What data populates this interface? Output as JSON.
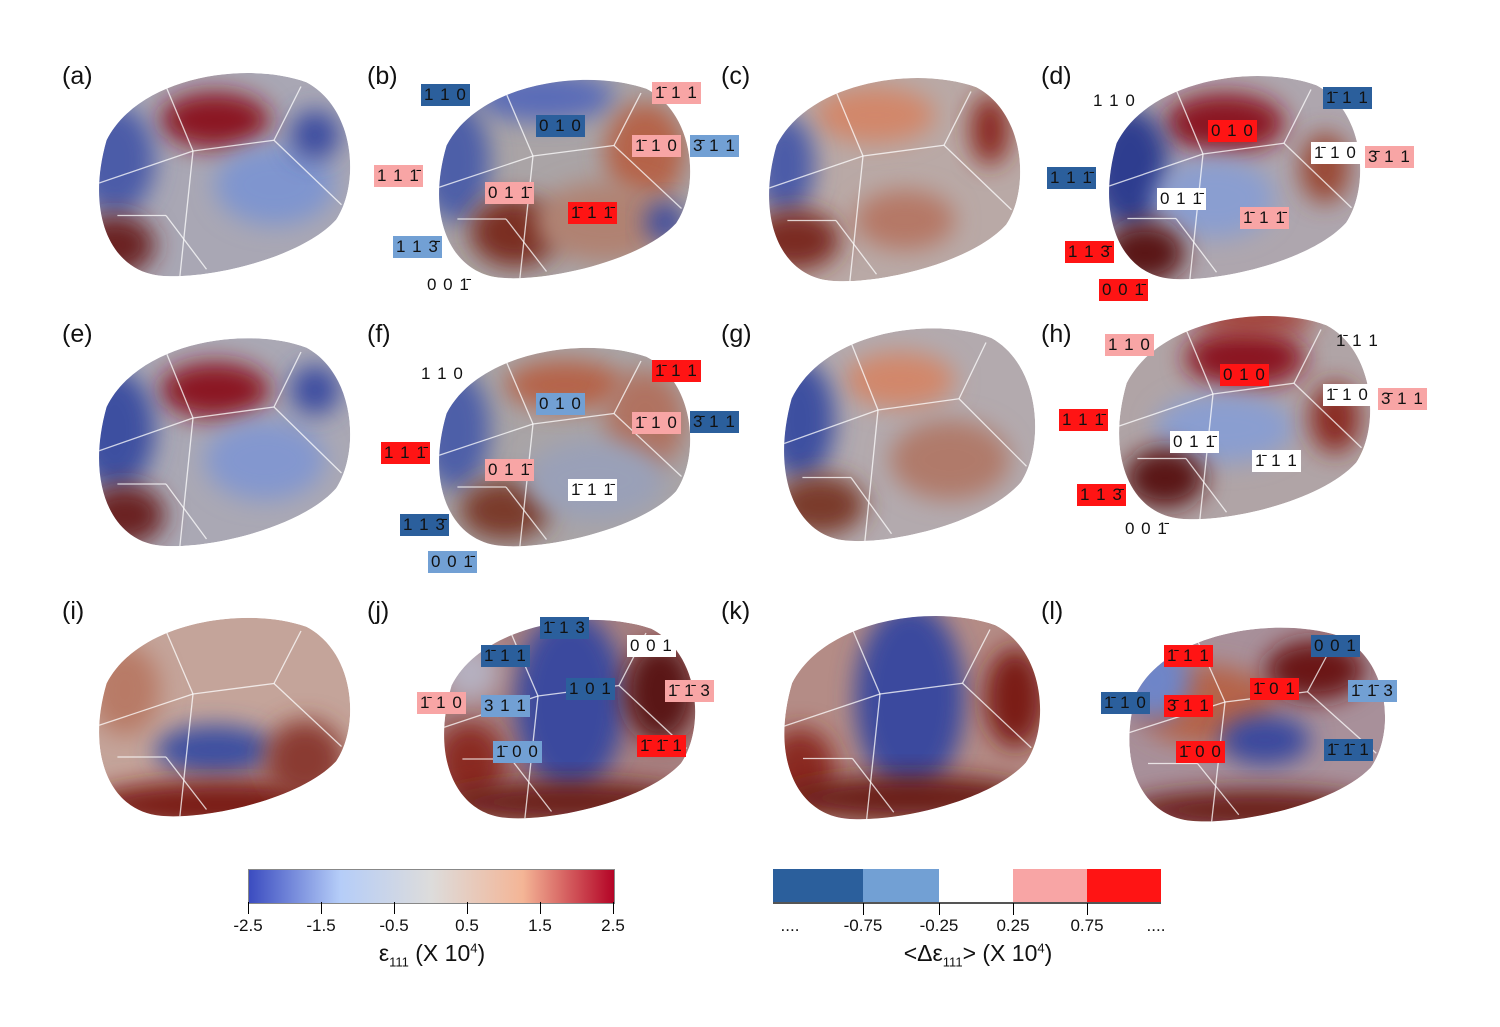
{
  "panels": {
    "a": {
      "label": "(a)"
    },
    "b": {
      "label": "(b)",
      "labels": [
        {
          "text": "1 1 0",
          "level": "strong-neg"
        },
        {
          "text": "0 1 0",
          "level": "strong-neg"
        },
        {
          "text": "1̄ 1 1",
          "level": "pos"
        },
        {
          "text": "1̄ 1 0",
          "level": "pos"
        },
        {
          "text": "3̄ 1 1",
          "level": "neg"
        },
        {
          "text": "1 1 1̄",
          "level": "pos"
        },
        {
          "text": "0 1 1̄",
          "level": "pos"
        },
        {
          "text": "1̄ 1 1̄",
          "level": "strong-pos"
        },
        {
          "text": "1 1 3̄",
          "level": "neg"
        },
        {
          "text": "0 0 1̄",
          "level": "none"
        }
      ]
    },
    "c": {
      "label": "(c)"
    },
    "d": {
      "label": "(d)",
      "labels": [
        {
          "text": "1 1 0",
          "level": "none"
        },
        {
          "text": "0 1 0",
          "level": "strong-pos"
        },
        {
          "text": "1̄ 1 1",
          "level": "strong-neg"
        },
        {
          "text": "1̄ 1 0",
          "level": "neutral"
        },
        {
          "text": "3̄ 1 1",
          "level": "pos"
        },
        {
          "text": "1 1 1̄",
          "level": "strong-neg"
        },
        {
          "text": "0 1 1̄",
          "level": "neutral"
        },
        {
          "text": "1̄ 1 1̄",
          "level": "pos"
        },
        {
          "text": "1 1 3̄",
          "level": "strong-pos"
        },
        {
          "text": "0 0 1̄",
          "level": "strong-pos"
        }
      ]
    },
    "e": {
      "label": "(e)"
    },
    "f": {
      "label": "(f)",
      "labels": [
        {
          "text": "1 1 0",
          "level": "none"
        },
        {
          "text": "0 1 0",
          "level": "neg"
        },
        {
          "text": "1̄ 1 1",
          "level": "strong-pos"
        },
        {
          "text": "1̄ 1 0",
          "level": "pos"
        },
        {
          "text": "3̄ 1 1",
          "level": "strong-neg"
        },
        {
          "text": "1 1 1̄",
          "level": "strong-pos"
        },
        {
          "text": "0 1 1̄",
          "level": "pos"
        },
        {
          "text": "1̄ 1 1̄",
          "level": "neutral"
        },
        {
          "text": "1 1 3̄",
          "level": "strong-neg"
        },
        {
          "text": "0 0 1̄",
          "level": "neg"
        }
      ]
    },
    "g": {
      "label": "(g)"
    },
    "h": {
      "label": "(h)",
      "labels": [
        {
          "text": "1 1 0",
          "level": "pos"
        },
        {
          "text": "1̄ 1 1",
          "level": "none"
        },
        {
          "text": "0 1 0",
          "level": "strong-pos"
        },
        {
          "text": "1̄ 1 0",
          "level": "neutral"
        },
        {
          "text": "3̄ 1 1",
          "level": "pos"
        },
        {
          "text": "1 1 1̄",
          "level": "strong-pos"
        },
        {
          "text": "0 1 1̄",
          "level": "neutral"
        },
        {
          "text": "1̄ 1 1",
          "level": "neutral"
        },
        {
          "text": "1 1 3̄",
          "level": "strong-pos"
        },
        {
          "text": "0 0 1̄",
          "level": "none"
        }
      ]
    },
    "i": {
      "label": "(i)"
    },
    "j": {
      "label": "(j)",
      "labels": [
        {
          "text": "1̄ 1 3",
          "level": "strong-neg"
        },
        {
          "text": "0 0 1",
          "level": "neutral"
        },
        {
          "text": "1̄ 1 1",
          "level": "strong-neg"
        },
        {
          "text": "1 0 1",
          "level": "strong-neg"
        },
        {
          "text": "1̄ 1̄ 3",
          "level": "pos"
        },
        {
          "text": "1̄ 1 0",
          "level": "pos"
        },
        {
          "text": "3 1 1",
          "level": "neg"
        },
        {
          "text": "1̄ 0 0",
          "level": "neg"
        },
        {
          "text": "1̄ 1̄ 1",
          "level": "strong-pos"
        }
      ]
    },
    "k": {
      "label": "(k)"
    },
    "l": {
      "label": "(l)",
      "labels": [
        {
          "text": "0 0 1",
          "level": "strong-neg"
        },
        {
          "text": "1̄ 1 1",
          "level": "strong-pos"
        },
        {
          "text": "1̄ 0 1",
          "level": "strong-pos"
        },
        {
          "text": "1̄ 1̄ 3",
          "level": "neg"
        },
        {
          "text": "1̄ 1 0",
          "level": "strong-neg"
        },
        {
          "text": "3̄ 1 1",
          "level": "strong-pos"
        },
        {
          "text": "1̄ 0 0",
          "level": "strong-pos"
        },
        {
          "text": "1̄ 1̄ 1",
          "level": "strong-neg"
        }
      ]
    }
  },
  "colorbar_continuous": {
    "ticks": [
      "-2.5",
      "-1.5",
      "-0.5",
      "0.5",
      "1.5",
      "2.5"
    ],
    "title_main": "ε",
    "title_sub": "111",
    "title_rest": " (X 10",
    "title_sup": "4",
    "title_end": ")",
    "colors": [
      "#3b4cc0",
      "#b5cdf8",
      "#dddcdb",
      "#f4b596",
      "#b40426"
    ]
  },
  "colorbar_discrete": {
    "ticks": [
      "....",
      "-0.75",
      "-0.25",
      "0.25",
      "0.75",
      "...."
    ],
    "title_pre": "<Δε",
    "title_sub": "111",
    "title_rest": "> (X 10",
    "title_sup": "4",
    "title_end": ")",
    "colors": [
      "#2b5f9c",
      "#72a0d4",
      "#ffffff",
      "#f8a5a5",
      "#ff1414"
    ]
  }
}
